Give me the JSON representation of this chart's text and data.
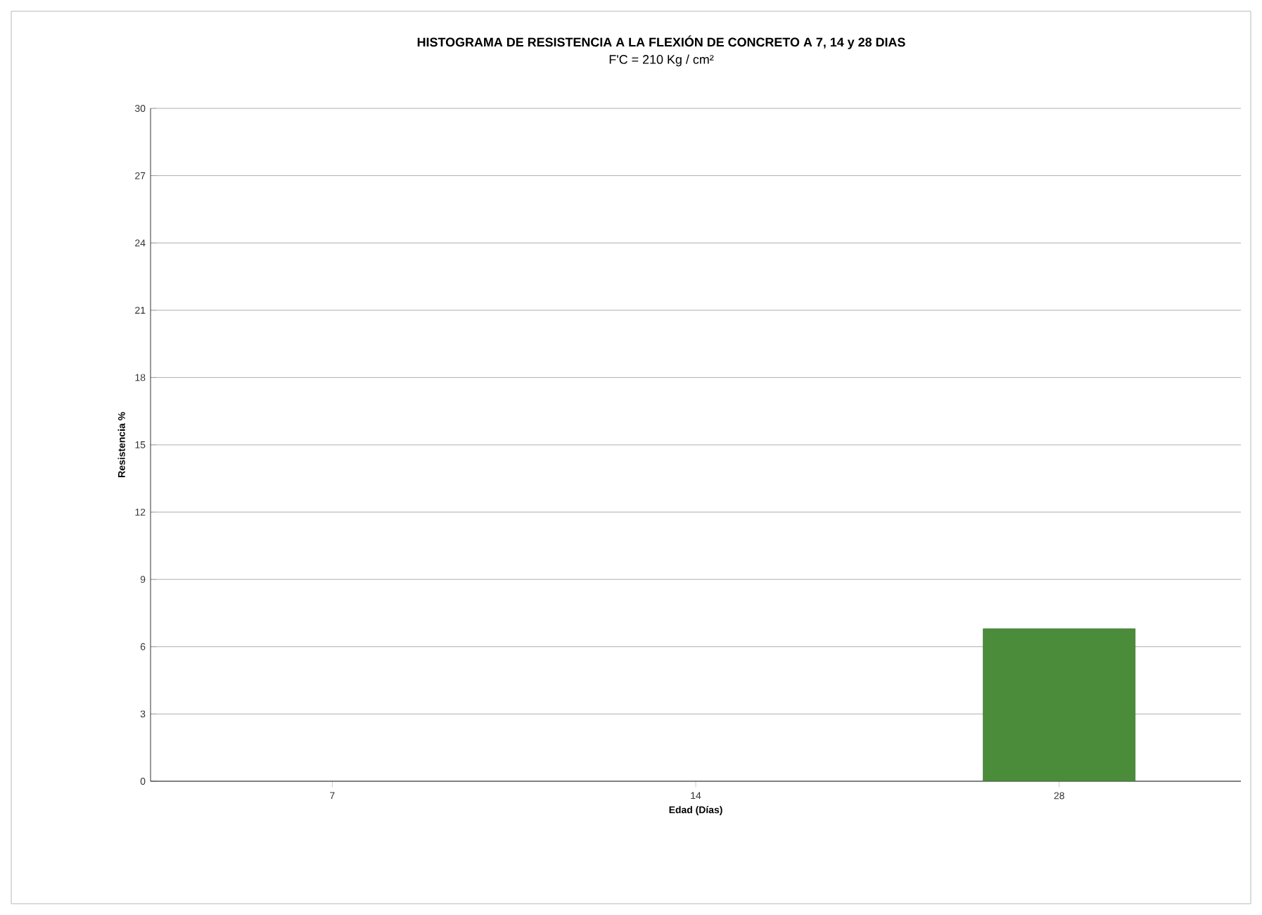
{
  "chart_data": {
    "type": "bar",
    "title": "HISTOGRAMA DE RESISTENCIA A LA FLEXIÓN DE CONCRETO A 7, 14 y 28 DIAS",
    "subtitle": "F'C = 210 Kg / cm²",
    "xlabel": "Edad (Días)",
    "ylabel": "Resistencia %",
    "categories": [
      "7",
      "14",
      "28"
    ],
    "values": [
      null,
      null,
      6.8
    ],
    "color": "#4a8c3a",
    "ylim": [
      0,
      30
    ],
    "yticks": [
      0,
      3,
      6,
      9,
      12,
      15,
      18,
      21,
      24,
      27,
      30
    ],
    "grid": "y"
  }
}
